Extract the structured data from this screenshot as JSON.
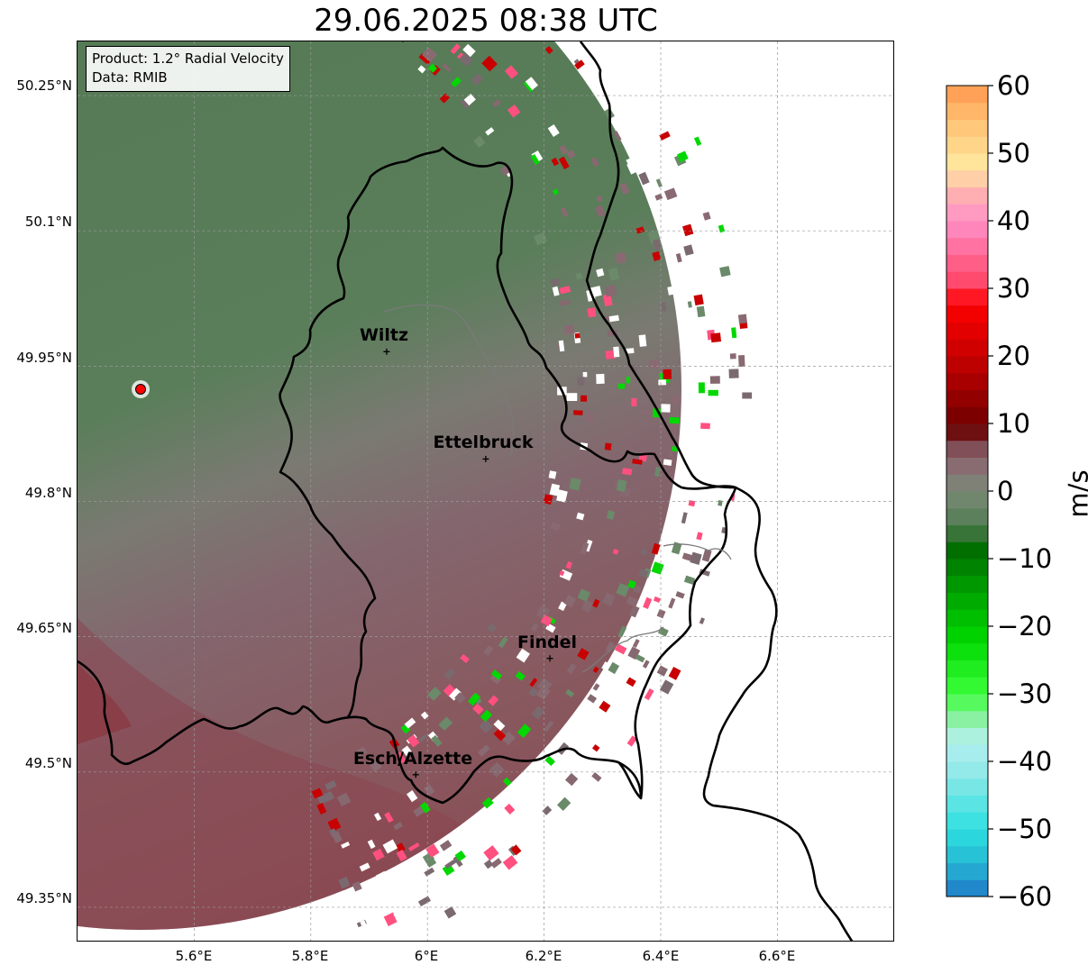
{
  "title": "29.06.2025 08:38 UTC",
  "info": {
    "product": "Product: 1.2° Radial Velocity",
    "data_source": "Data: RMIB"
  },
  "axes": {
    "lat_ticks": [
      "50.25°N",
      "50.1°N",
      "49.95°N",
      "49.8°N",
      "49.65°N",
      "49.5°N",
      "49.35°N"
    ],
    "lon_ticks": [
      "5.6°E",
      "5.8°E",
      "6°E",
      "6.2°E",
      "6.4°E",
      "6.6°E"
    ],
    "grid": true
  },
  "cities": [
    {
      "name": "Wiltz",
      "lon": 5.93,
      "lat": 49.966
    },
    {
      "name": "Ettelbruck",
      "lon": 6.1,
      "lat": 49.847
    },
    {
      "name": "Findel",
      "lon": 6.21,
      "lat": 49.626
    },
    {
      "name": "Esch/Alzette",
      "lon": 5.98,
      "lat": 49.497
    }
  ],
  "radar_site": {
    "lon": 5.505,
    "lat": 49.914
  },
  "colorbar": {
    "unit": "m/s",
    "min": -60,
    "max": 60,
    "tick_labels": [
      "60",
      "50",
      "40",
      "30",
      "20",
      "10",
      "0",
      "−10",
      "−20",
      "−30",
      "−40",
      "−50",
      "−60"
    ],
    "stops": [
      {
        "v": -60,
        "c": "#1f78c8"
      },
      {
        "v": -55,
        "c": "#26b8d4"
      },
      {
        "v": -50,
        "c": "#2ee0e0"
      },
      {
        "v": -42,
        "c": "#8ee8e8"
      },
      {
        "v": -37,
        "c": "#b6f0f0"
      },
      {
        "v": -34,
        "c": "#8ef0a8"
      },
      {
        "v": -30,
        "c": "#3cff3c"
      },
      {
        "v": -22,
        "c": "#00d800"
      },
      {
        "v": -14,
        "c": "#009a00"
      },
      {
        "v": -7,
        "c": "#006000"
      },
      {
        "v": -6,
        "c": "#4a7a4a"
      },
      {
        "v": 0,
        "c": "#7a8a78"
      },
      {
        "v": 4,
        "c": "#8a6a72"
      },
      {
        "v": 8,
        "c": "#7a3a42"
      },
      {
        "v": 9,
        "c": "#6a0000"
      },
      {
        "v": 20,
        "c": "#c80000"
      },
      {
        "v": 28,
        "c": "#ff0000"
      },
      {
        "v": 30,
        "c": "#ff4060"
      },
      {
        "v": 40,
        "c": "#ff90c8"
      },
      {
        "v": 44,
        "c": "#ffb0b0"
      },
      {
        "v": 48,
        "c": "#ffe8a0"
      },
      {
        "v": 55,
        "c": "#ffc070"
      },
      {
        "v": 60,
        "c": "#ff9850"
      }
    ]
  }
}
